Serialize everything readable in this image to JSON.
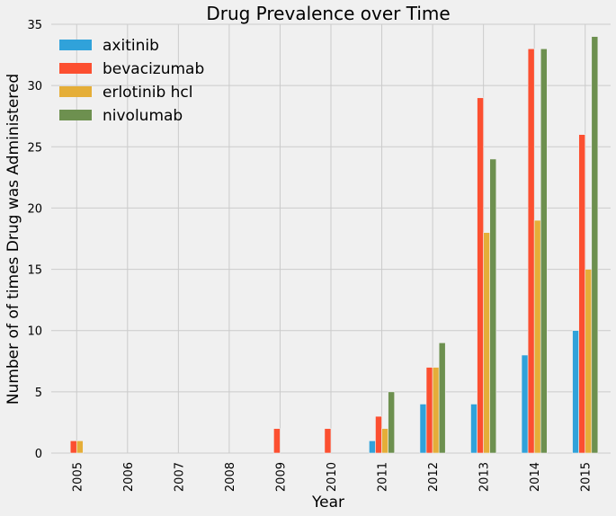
{
  "chart_data": {
    "type": "bar",
    "title": "Drug Prevalence over Time",
    "xlabel": "Year",
    "ylabel": "Number of of times Drug was Administered",
    "categories": [
      "2005",
      "2006",
      "2007",
      "2008",
      "2009",
      "2010",
      "2011",
      "2012",
      "2013",
      "2014",
      "2015"
    ],
    "series": [
      {
        "name": "axitinib",
        "color": "#30a2da",
        "values": [
          0,
          0,
          0,
          0,
          0,
          0,
          1,
          4,
          4,
          8,
          10
        ]
      },
      {
        "name": "bevacizumab",
        "color": "#fc4f30",
        "values": [
          1,
          0,
          0,
          0,
          2,
          2,
          3,
          7,
          29,
          33,
          26
        ]
      },
      {
        "name": "erlotinib hcl",
        "color": "#e5ae38",
        "values": [
          1,
          0,
          0,
          0,
          0,
          0,
          2,
          7,
          18,
          19,
          15
        ]
      },
      {
        "name": "nivolumab",
        "color": "#6d904f",
        "values": [
          0,
          0,
          0,
          0,
          0,
          0,
          5,
          9,
          24,
          33,
          34
        ]
      }
    ],
    "ylim": [
      0,
      35
    ],
    "yticks": [
      0,
      5,
      10,
      15,
      20,
      25,
      30,
      35
    ],
    "grid": true,
    "legend": "top-left"
  }
}
